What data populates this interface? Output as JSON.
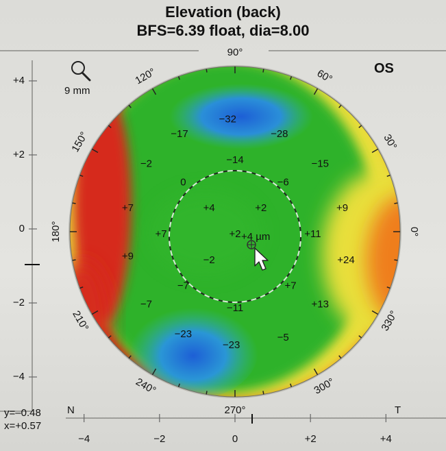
{
  "header": {
    "title": "Elevation (back)",
    "subtitle": "BFS=6.39 float, dia=8.00"
  },
  "eye": "OS",
  "zoom": {
    "icon": "magnifier-icon",
    "label": "9 mm"
  },
  "cursor": {
    "label": "+4 µm",
    "y": "y=–0.48",
    "x": "x=+0.57"
  },
  "side_labels": {
    "nasal": "N",
    "temporal": "T"
  },
  "axes": {
    "x_ticks": [
      "−4",
      "−2",
      "0",
      "+2",
      "+4"
    ],
    "y_ticks": [
      "+4",
      "+2",
      "0",
      "−2",
      "−4"
    ]
  },
  "angles": [
    "0°",
    "30°",
    "60°",
    "90°",
    "120°",
    "150°",
    "180°",
    "210°",
    "240°",
    "270°",
    "300°",
    "330°"
  ],
  "colors": {
    "red": "#d62a1c",
    "orange": "#ef7e1a",
    "yellow": "#e9df3a",
    "green": "#2fb22b",
    "blue": "#1d5fd6"
  },
  "chart_data": {
    "type": "heatmap",
    "unit": "µm",
    "values": [
      {
        "x": -0.2,
        "y": 3.1,
        "label": "−32"
      },
      {
        "x": -1.5,
        "y": 2.7,
        "label": "−17"
      },
      {
        "x": 1.2,
        "y": 2.7,
        "label": "−28"
      },
      {
        "x": -2.4,
        "y": 1.9,
        "label": "−2"
      },
      {
        "x": 0.0,
        "y": 2.0,
        "label": "−14"
      },
      {
        "x": 2.3,
        "y": 1.9,
        "label": "−15"
      },
      {
        "x": -1.4,
        "y": 1.4,
        "label": "0"
      },
      {
        "x": 1.3,
        "y": 1.4,
        "label": "−6"
      },
      {
        "x": -2.9,
        "y": 0.7,
        "label": "+7"
      },
      {
        "x": -0.7,
        "y": 0.7,
        "label": "+4"
      },
      {
        "x": 0.7,
        "y": 0.7,
        "label": "+2"
      },
      {
        "x": 2.9,
        "y": 0.7,
        "label": "+9"
      },
      {
        "x": -2.0,
        "y": 0.0,
        "label": "+7"
      },
      {
        "x": 0.0,
        "y": 0.0,
        "label": "+2"
      },
      {
        "x": 2.1,
        "y": 0.0,
        "label": "+11"
      },
      {
        "x": -2.9,
        "y": -0.6,
        "label": "+9"
      },
      {
        "x": -0.7,
        "y": -0.7,
        "label": "−2"
      },
      {
        "x": 3.0,
        "y": -0.7,
        "label": "+24"
      },
      {
        "x": -1.4,
        "y": -1.4,
        "label": "−7"
      },
      {
        "x": 1.5,
        "y": -1.4,
        "label": "+7"
      },
      {
        "x": -2.4,
        "y": -1.9,
        "label": "−7"
      },
      {
        "x": 0.0,
        "y": -2.0,
        "label": "−11"
      },
      {
        "x": 2.3,
        "y": -1.9,
        "label": "+13"
      },
      {
        "x": -1.4,
        "y": -2.7,
        "label": "−23"
      },
      {
        "x": -0.1,
        "y": -3.0,
        "label": "−23"
      },
      {
        "x": 1.3,
        "y": -2.8,
        "label": "−5"
      }
    ]
  }
}
